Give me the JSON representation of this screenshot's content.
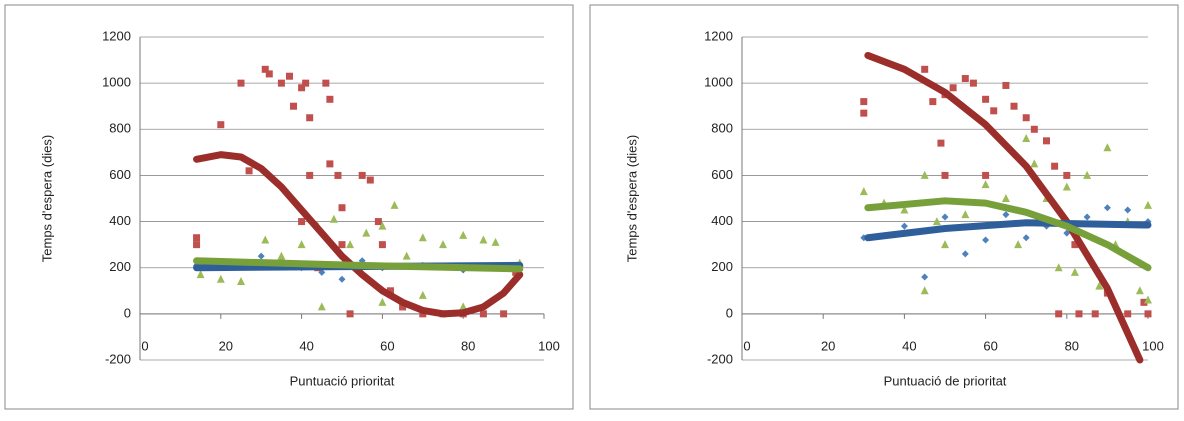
{
  "chart_data": [
    {
      "type": "scatter",
      "x_label": "Puntuació prioritat",
      "y_label": "Temps d'espera (dies)",
      "xlim": [
        0,
        100
      ],
      "ylim": [
        -200,
        1200
      ],
      "xticks": [
        0,
        20,
        40,
        60,
        80,
        100
      ],
      "yticks": [
        -200,
        0,
        200,
        400,
        600,
        800,
        1000,
        1200
      ],
      "grid": true,
      "series": [
        {
          "color": "#4f81bd",
          "marker": "diamond",
          "x": [
            14,
            20,
            30,
            35,
            40,
            45,
            50,
            55,
            60,
            70,
            80,
            90,
            94
          ],
          "values": [
            210,
            200,
            250,
            230,
            200,
            180,
            150,
            230,
            200,
            210,
            190,
            200,
            190
          ]
        },
        {
          "color": "#c0504d",
          "marker": "square",
          "x": [
            14,
            14,
            20,
            25,
            27,
            31,
            32,
            35,
            37,
            38,
            40,
            41,
            42,
            42,
            40,
            44,
            46,
            47,
            47,
            49,
            50,
            50,
            52,
            55,
            57,
            59,
            60,
            62,
            65,
            70,
            75,
            80,
            85,
            90,
            93
          ],
          "values": [
            330,
            300,
            820,
            1000,
            620,
            1060,
            1040,
            1000,
            1030,
            900,
            980,
            1000,
            850,
            600,
            400,
            200,
            1000,
            930,
            650,
            600,
            460,
            300,
            0,
            600,
            580,
            400,
            300,
            100,
            30,
            0,
            0,
            0,
            0,
            0,
            180
          ]
        },
        {
          "color": "#9bbb59",
          "marker": "triangle",
          "x": [
            15,
            20,
            25,
            31,
            35,
            40,
            44,
            48,
            52,
            56,
            60,
            63,
            66,
            70,
            75,
            80,
            85,
            88,
            92,
            94,
            45,
            60,
            70,
            80
          ],
          "values": [
            170,
            150,
            140,
            320,
            250,
            300,
            380,
            410,
            300,
            350,
            380,
            470,
            250,
            330,
            300,
            340,
            320,
            310,
            200,
            220,
            30,
            50,
            80,
            30
          ]
        }
      ],
      "trendlines": [
        {
          "color": "#9b2d2a",
          "x": [
            14,
            20,
            25,
            30,
            35,
            40,
            45,
            50,
            55,
            60,
            65,
            70,
            75,
            80,
            85,
            90,
            94
          ],
          "values": [
            670,
            690,
            680,
            630,
            550,
            450,
            350,
            250,
            170,
            100,
            50,
            15,
            0,
            5,
            30,
            90,
            170
          ]
        },
        {
          "color": "#2e5f9b",
          "x": [
            14,
            94
          ],
          "values": [
            200,
            210
          ]
        },
        {
          "color": "#77a03a",
          "x": [
            14,
            54,
            94
          ],
          "values": [
            230,
            210,
            195
          ]
        }
      ]
    },
    {
      "type": "scatter",
      "x_label": "Puntuació de prioritat",
      "y_label": "Temps d'espera (dies)",
      "xlim": [
        0,
        100
      ],
      "ylim": [
        -200,
        1200
      ],
      "xticks": [
        0,
        20,
        40,
        60,
        80,
        100
      ],
      "yticks": [
        -200,
        0,
        200,
        400,
        600,
        800,
        1000,
        1200
      ],
      "grid": true,
      "series": [
        {
          "color": "#4f81bd",
          "marker": "diamond",
          "x": [
            30,
            40,
            45,
            50,
            55,
            60,
            65,
            70,
            75,
            80,
            85,
            90,
            95,
            100
          ],
          "values": [
            330,
            380,
            160,
            420,
            260,
            320,
            430,
            330,
            380,
            350,
            420,
            460,
            450,
            400
          ]
        },
        {
          "color": "#c0504d",
          "marker": "square",
          "x": [
            30,
            30,
            45,
            47,
            50,
            52,
            55,
            57,
            60,
            62,
            65,
            67,
            70,
            72,
            75,
            77,
            60,
            50,
            49,
            80,
            82,
            83,
            87,
            90,
            95,
            99,
            100,
            78
          ],
          "values": [
            920,
            870,
            1060,
            920,
            950,
            980,
            1020,
            1000,
            930,
            880,
            990,
            900,
            850,
            800,
            750,
            640,
            600,
            600,
            740,
            600,
            300,
            0,
            0,
            90,
            0,
            50,
            0,
            0
          ]
        },
        {
          "color": "#9bbb59",
          "marker": "triangle",
          "x": [
            30,
            35,
            40,
            45,
            45,
            48,
            50,
            55,
            60,
            65,
            68,
            70,
            72,
            75,
            78,
            80,
            82,
            85,
            88,
            90,
            92,
            95,
            98,
            100,
            100
          ],
          "values": [
            530,
            480,
            450,
            100,
            600,
            400,
            300,
            430,
            560,
            500,
            300,
            760,
            650,
            500,
            200,
            550,
            180,
            600,
            120,
            720,
            300,
            400,
            100,
            470,
            60
          ]
        }
      ],
      "trendlines": [
        {
          "color": "#9b2d2a",
          "x": [
            31,
            40,
            50,
            60,
            70,
            80,
            90,
            98
          ],
          "values": [
            1120,
            1060,
            960,
            820,
            640,
            400,
            110,
            -200
          ]
        },
        {
          "color": "#2e5f9b",
          "x": [
            31,
            50,
            70,
            100
          ],
          "values": [
            330,
            370,
            395,
            385
          ]
        },
        {
          "color": "#77a03a",
          "x": [
            31,
            50,
            60,
            70,
            80,
            90,
            100
          ],
          "values": [
            460,
            490,
            480,
            440,
            380,
            300,
            200
          ]
        }
      ]
    }
  ]
}
